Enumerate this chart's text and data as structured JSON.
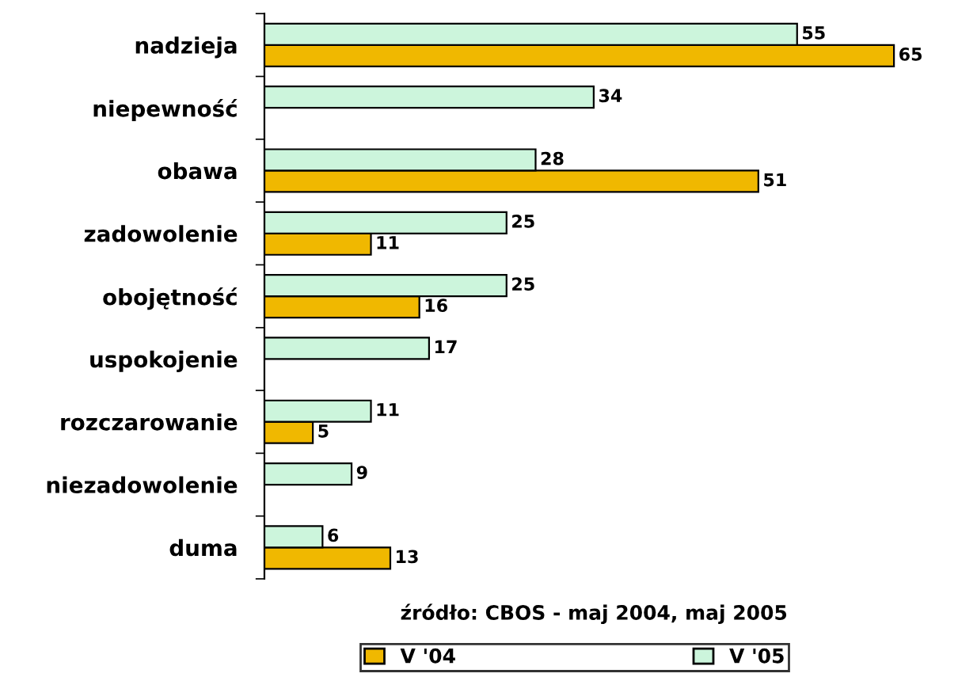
{
  "chart_data": {
    "type": "bar",
    "orientation": "horizontal",
    "categories": [
      "nadzieja",
      "niepewność",
      "obawa",
      "zadowolenie",
      "obojętność",
      "uspokojenie",
      "rozczarowanie",
      "niezadowolenie",
      "duma"
    ],
    "series": [
      {
        "name": "V '04",
        "color": "#f0b800",
        "values": [
          65,
          null,
          51,
          11,
          16,
          null,
          5,
          null,
          13
        ]
      },
      {
        "name": "V '05",
        "color": "#ccf5dc",
        "values": [
          55,
          34,
          28,
          25,
          25,
          17,
          11,
          9,
          6
        ]
      }
    ],
    "data_labels": true,
    "legend": "bottom",
    "grid": false,
    "annotations": [
      "źródło: CBOS - maj 2004, maj 2005"
    ]
  }
}
